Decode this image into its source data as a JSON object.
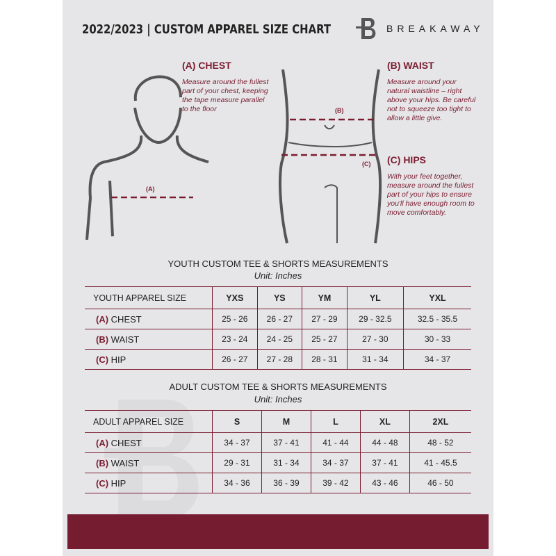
{
  "header": {
    "title": "2022/2023  |  CUSTOM APPAREL SIZE CHART",
    "brand": "BREAKAWAY"
  },
  "guide": {
    "chest": {
      "heading": "(A) CHEST",
      "text": "Measure around the fullest part of your chest, keeping the tape measure parallel to the floor",
      "marker": "(A)"
    },
    "waist": {
      "heading": "(B) WAIST",
      "text": "Measure around your natural waistline – right above your hips. Be careful not to squeeze too tight to allow a little give.",
      "marker": "(B)"
    },
    "hips": {
      "heading": "(C) HIPS",
      "text": "With your feet together, measure around the fullest part of your hips to ensure you'll have enough room to move comfortably.",
      "marker": "(C)"
    }
  },
  "youth": {
    "title": "YOUTH CUSTOM TEE & SHORTS MEASUREMENTS",
    "unit": "Unit: Inches",
    "header": [
      "YOUTH APPAREL SIZE",
      "YXS",
      "YS",
      "YM",
      "YL",
      "YXL"
    ],
    "rows": [
      {
        "tag": "(A)",
        "label": "CHEST",
        "values": [
          "25 - 26",
          "26 - 27",
          "27 - 29",
          "29 - 32.5",
          "32.5 - 35.5"
        ]
      },
      {
        "tag": "(B)",
        "label": "WAIST",
        "values": [
          "23 - 24",
          "24 - 25",
          "25 - 27",
          "27 - 30",
          "30 - 33"
        ]
      },
      {
        "tag": "(C)",
        "label": "HIP",
        "values": [
          "26 - 27",
          "27 - 28",
          "28 - 31",
          "31 - 34",
          "34 - 37"
        ]
      }
    ]
  },
  "adult": {
    "title": "ADULT CUSTOM TEE & SHORTS MEASUREMENTS",
    "unit": "Unit: Inches",
    "header": [
      "ADULT APPAREL SIZE",
      "S",
      "M",
      "L",
      "XL",
      "2XL"
    ],
    "rows": [
      {
        "tag": "(A)",
        "label": "CHEST",
        "values": [
          "34 - 37",
          "37 - 41",
          "41 - 44",
          "44 - 48",
          "48 - 52"
        ]
      },
      {
        "tag": "(B)",
        "label": "WAIST",
        "values": [
          "29 - 31",
          "31 - 34",
          "34 - 37",
          "37 - 41",
          "41 - 45.5"
        ]
      },
      {
        "tag": "(C)",
        "label": "HIP",
        "values": [
          "34 - 36",
          "36 - 39",
          "39 - 42",
          "43 - 46",
          "46 - 50"
        ]
      }
    ]
  },
  "colors": {
    "accent": "#751c31",
    "background": "#e6e6e8"
  }
}
